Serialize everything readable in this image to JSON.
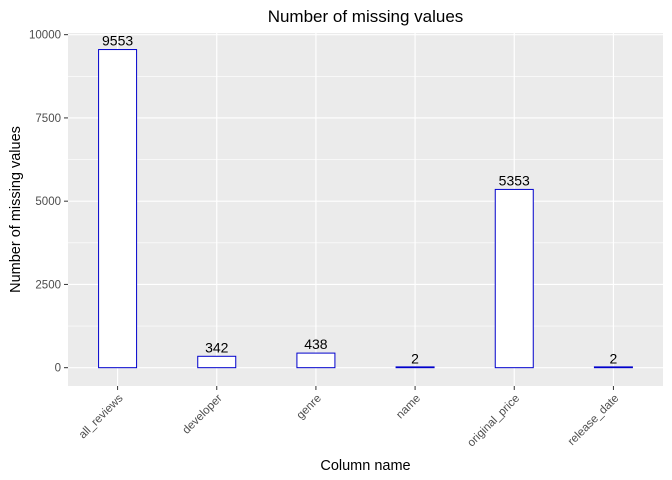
{
  "chart_data": {
    "type": "bar",
    "title": "Number of missing values",
    "xlabel": "Column name",
    "ylabel": "Number of missing values",
    "categories": [
      "all_reviews",
      "developer",
      "genre",
      "name",
      "original_price",
      "release_date"
    ],
    "values": [
      9553,
      342,
      438,
      2,
      5353,
      2
    ],
    "data_labels": [
      "9553",
      "342",
      "438",
      "2",
      "5353",
      "2"
    ],
    "ylim": [
      -550,
      10050
    ],
    "y_ticks": [
      0,
      2500,
      5000,
      7500,
      10000
    ],
    "y_tick_labels": [
      "0",
      "2500",
      "5000",
      "7500",
      "10000"
    ],
    "grid": true,
    "legend": "none",
    "colors": {
      "panel": "#ebebeb",
      "grid_major": "#ffffff",
      "bar_fill": "#ffffff",
      "bar_outline": "#0000cc",
      "tick_text": "#4d4d4d",
      "text": "#000000"
    }
  }
}
